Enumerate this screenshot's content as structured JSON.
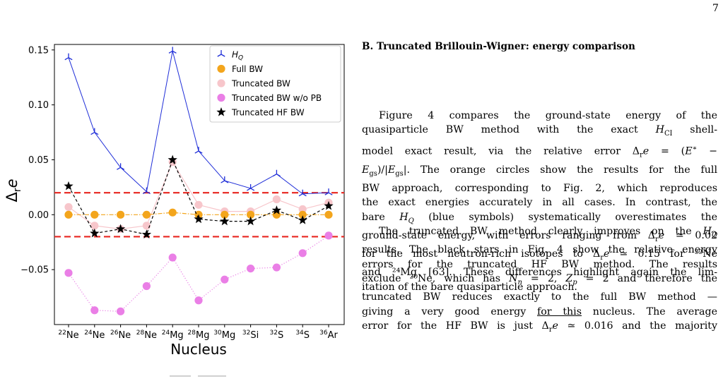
{
  "page": {
    "number": "7"
  },
  "figure": {
    "chart_data": {
      "type": "line",
      "ylabel": "Δ_r e",
      "xlabel": "Nucleus",
      "ylim": [
        -0.1,
        0.155
      ],
      "yticks": [
        0.15,
        0.1,
        0.05,
        0.0,
        -0.05
      ],
      "ytick_labels": [
        "0.15",
        "0.10",
        "0.05",
        "0.00",
        "−0.05"
      ],
      "categories": [
        {
          "mass": "22",
          "el": "Ne"
        },
        {
          "mass": "24",
          "el": "Ne"
        },
        {
          "mass": "26",
          "el": "Ne"
        },
        {
          "mass": "28",
          "el": "Ne"
        },
        {
          "mass": "24",
          "el": "Mg"
        },
        {
          "mass": "28",
          "el": "Mg"
        },
        {
          "mass": "30",
          "el": "Mg"
        },
        {
          "mass": "32",
          "el": "Si"
        },
        {
          "mass": "32",
          "el": "S"
        },
        {
          "mass": "34",
          "el": "S"
        },
        {
          "mass": "36",
          "el": "Ar"
        }
      ],
      "legend_position": "top-right",
      "reference_lines": [
        0.02,
        -0.02
      ],
      "reference_line_color": "#e8251f",
      "series": [
        {
          "name": "H_Q",
          "marker": "tri",
          "line": "solid",
          "color": "#1f2ed8",
          "values": [
            0.143,
            0.075,
            0.043,
            0.021,
            0.149,
            0.058,
            0.031,
            0.024,
            0.037,
            0.019,
            0.02
          ]
        },
        {
          "name": "Full BW",
          "marker": "circle",
          "line": "dashdot",
          "color": "#f3a51c",
          "values": [
            0.0,
            0.0,
            0.0,
            0.0,
            0.002,
            0.0,
            0.0,
            0.0,
            0.0,
            0.0,
            0.0
          ]
        },
        {
          "name": "Truncated BW",
          "marker": "circle",
          "line": "solid",
          "color": "#f7c6cb",
          "values": [
            0.007,
            -0.01,
            -0.013,
            -0.01,
            0.048,
            0.009,
            0.003,
            0.003,
            0.014,
            0.005,
            0.011
          ]
        },
        {
          "name": "Truncated BW w/o PB",
          "marker": "circle",
          "line": "dotted",
          "color": "#ea7fe6",
          "values": [
            -0.053,
            -0.087,
            -0.088,
            -0.065,
            -0.039,
            -0.078,
            -0.059,
            -0.049,
            -0.048,
            -0.035,
            -0.019
          ]
        },
        {
          "name": "Truncated HF BW",
          "marker": "star",
          "line": "dashed",
          "color": "#000000",
          "values": [
            0.026,
            -0.017,
            -0.013,
            -0.018,
            0.05,
            -0.004,
            -0.006,
            -0.006,
            0.004,
            -0.005,
            0.008
          ]
        }
      ]
    }
  },
  "section": {
    "heading": "B.   Truncated Brillouin-Wigner: energy comparison"
  },
  "paragraphs": {
    "p1": [
      "Figure 4 compares the ground-state energy of the",
      "quasiparticle BW method with the exact H_CI shell-",
      "model exact result, via the relative error Δ_r e = (E* −",
      "E_gs)/|E_gs|. The orange circles show the results for the full",
      "BW approach, corresponding to Fig. 2, which reproduces",
      "the exact energies accurately in all cases. In contrast, the",
      "bare H_Q (blue symbols) systematically overestimates the",
      "ground-state energy, with errors ranging from Δ_r e ≃ 0.02",
      "for the most neutron-rich isotopes to Δ_r e ≃ 0.15 for ²²Ne",
      "and ²⁴Mg [63]. These differences highlight again the lim-",
      "itation of the bare quasiparticle approach."
    ],
    "p2": [
      "The truncated BW method clearly improves on the H_Q",
      "results. The black stars in Fig. 4 show the relative energy",
      "errors for the truncated HF BW method. The results",
      "exclude ²⁰Ne, which has N_n = 2, Z_p = 2 and therefore the",
      "truncated BW reduces exactly to the full BW method —",
      "giving a very good energy for this nucleus. The average",
      "error for the HF BW is just Δ_r e ≃ 0.016 and the majority"
    ]
  }
}
